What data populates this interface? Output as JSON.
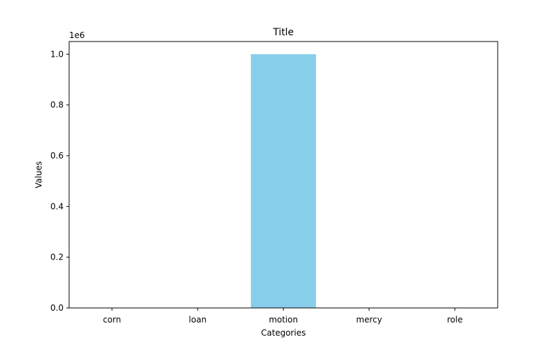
{
  "chart_data": {
    "type": "bar",
    "title": "Title",
    "xlabel": "Categories",
    "ylabel": "Values",
    "y_offset_label": "1e6",
    "categories": [
      "corn",
      "loan",
      "motion",
      "mercy",
      "role"
    ],
    "values": [
      0,
      0,
      1000000,
      0,
      0
    ],
    "ylim": [
      0,
      1050000
    ],
    "yticks": [
      0,
      200000,
      400000,
      600000,
      800000,
      1000000
    ],
    "ytick_labels": [
      "0.0",
      "0.2",
      "0.4",
      "0.6",
      "0.8",
      "1.0"
    ],
    "bar_color": "#87ceeb",
    "grid": false,
    "legend": "none"
  }
}
